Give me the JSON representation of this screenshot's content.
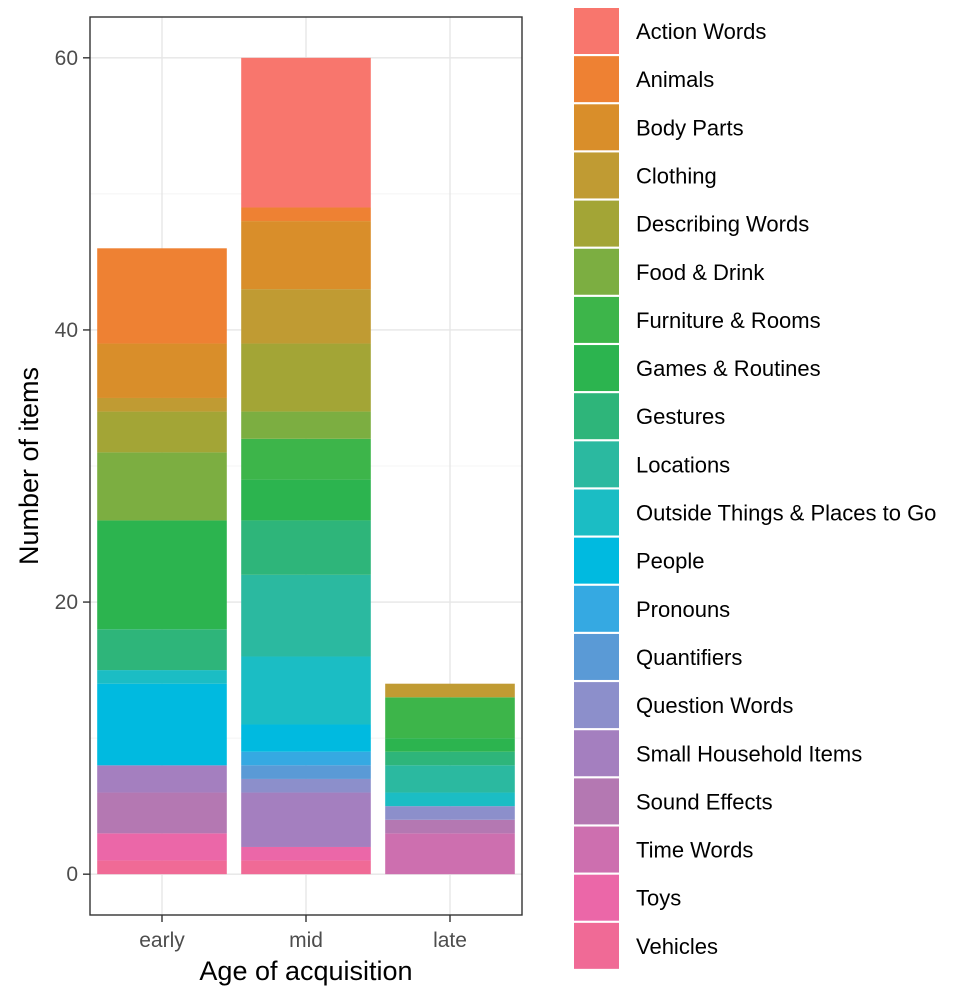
{
  "chart_data": {
    "type": "bar",
    "stacked": true,
    "title": "",
    "xlabel": "Age of acquisition",
    "ylabel": "Number of items",
    "ylim": [
      -3,
      63
    ],
    "yticks": [
      0,
      20,
      40,
      60
    ],
    "grid": true,
    "legend_position": "right",
    "categories": [
      "early",
      "mid",
      "late"
    ],
    "series": [
      {
        "name": "Action Words",
        "color": "#F8766D",
        "values": [
          0,
          11,
          0
        ]
      },
      {
        "name": "Animals",
        "color": "#EE8133",
        "values": [
          7,
          1,
          0
        ]
      },
      {
        "name": "Body Parts",
        "color": "#D98E2A",
        "values": [
          4,
          5,
          0
        ]
      },
      {
        "name": "Clothing",
        "color": "#C09B33",
        "values": [
          1,
          4,
          1
        ]
      },
      {
        "name": "Describing Words",
        "color": "#A3A536",
        "values": [
          3,
          5,
          0
        ]
      },
      {
        "name": "Food & Drink",
        "color": "#7CAE41",
        "values": [
          5,
          2,
          0
        ]
      },
      {
        "name": "Furniture & Rooms",
        "color": "#3DB54A",
        "values": [
          0,
          3,
          3
        ]
      },
      {
        "name": "Games & Routines",
        "color": "#2CB44F",
        "values": [
          8,
          3,
          1
        ]
      },
      {
        "name": "Gestures",
        "color": "#2EB57A",
        "values": [
          3,
          4,
          1
        ]
      },
      {
        "name": "Locations",
        "color": "#2BB9A0",
        "values": [
          0,
          6,
          2
        ]
      },
      {
        "name": "Outside Things & Places to Go",
        "color": "#1BBDC4",
        "values": [
          1,
          5,
          1
        ]
      },
      {
        "name": "People",
        "color": "#00BAE0",
        "values": [
          6,
          2,
          0
        ]
      },
      {
        "name": "Pronouns",
        "color": "#35A9E2",
        "values": [
          0,
          1,
          0
        ]
      },
      {
        "name": "Quantifiers",
        "color": "#5A9AD6",
        "values": [
          0,
          1,
          0
        ]
      },
      {
        "name": "Question Words",
        "color": "#8C8FCB",
        "values": [
          0,
          1,
          1
        ]
      },
      {
        "name": "Small Household Items",
        "color": "#A47FBF",
        "values": [
          2,
          4,
          0
        ]
      },
      {
        "name": "Sound Effects",
        "color": "#B478B2",
        "values": [
          3,
          0,
          1
        ]
      },
      {
        "name": "Time Words",
        "color": "#CD6FAF",
        "values": [
          0,
          0,
          3
        ]
      },
      {
        "name": "Toys",
        "color": "#EB67A8",
        "values": [
          2,
          1,
          0
        ]
      },
      {
        "name": "Vehicles",
        "color": "#F06A96",
        "values": [
          1,
          1,
          0
        ]
      }
    ]
  }
}
